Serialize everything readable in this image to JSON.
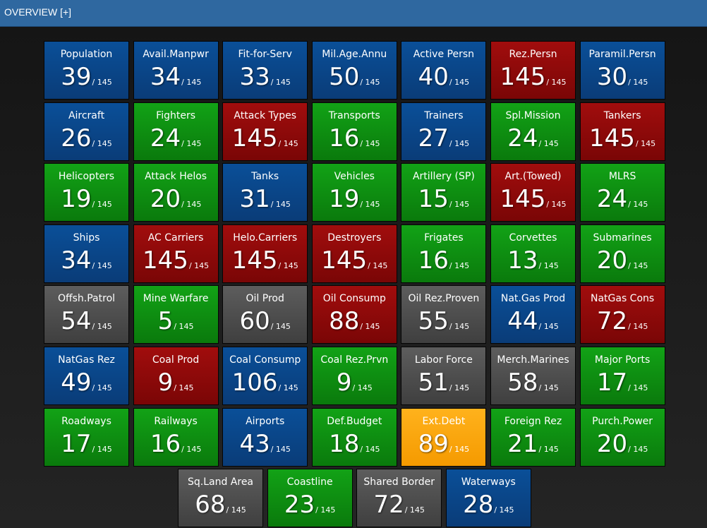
{
  "header": {
    "title": "OVERVIEW [+]"
  },
  "colors": {
    "blue": "#0a4f98",
    "green": "#12a216",
    "red": "#a10d0d",
    "gray": "#5d5d5d",
    "orange": "#ffb21c",
    "header": "#2f68a0"
  },
  "tiles": [
    {
      "label": "Population",
      "rank": "39",
      "total": "/ 145",
      "color": "blue"
    },
    {
      "label": "Avail.Manpwr",
      "rank": "34",
      "total": "/ 145",
      "color": "blue"
    },
    {
      "label": "Fit-for-Serv",
      "rank": "33",
      "total": "/ 145",
      "color": "blue"
    },
    {
      "label": "Mil.Age.Annu",
      "rank": "50",
      "total": "/ 145",
      "color": "blue"
    },
    {
      "label": "Active Persn",
      "rank": "40",
      "total": "/ 145",
      "color": "blue"
    },
    {
      "label": "Rez.Persn",
      "rank": "145",
      "total": "/ 145",
      "color": "red"
    },
    {
      "label": "Paramil.Persn",
      "rank": "30",
      "total": "/ 145",
      "color": "blue"
    },
    {
      "label": "Aircraft",
      "rank": "26",
      "total": "/ 145",
      "color": "blue"
    },
    {
      "label": "Fighters",
      "rank": "24",
      "total": "/ 145",
      "color": "green"
    },
    {
      "label": "Attack Types",
      "rank": "145",
      "total": "/ 145",
      "color": "red"
    },
    {
      "label": "Transports",
      "rank": "16",
      "total": "/ 145",
      "color": "green"
    },
    {
      "label": "Trainers",
      "rank": "27",
      "total": "/ 145",
      "color": "blue"
    },
    {
      "label": "Spl.Mission",
      "rank": "24",
      "total": "/ 145",
      "color": "green"
    },
    {
      "label": "Tankers",
      "rank": "145",
      "total": "/ 145",
      "color": "red"
    },
    {
      "label": "Helicopters",
      "rank": "19",
      "total": "/ 145",
      "color": "green"
    },
    {
      "label": "Attack Helos",
      "rank": "20",
      "total": "/ 145",
      "color": "green"
    },
    {
      "label": "Tanks",
      "rank": "31",
      "total": "/ 145",
      "color": "blue"
    },
    {
      "label": "Vehicles",
      "rank": "19",
      "total": "/ 145",
      "color": "green"
    },
    {
      "label": "Artillery (SP)",
      "rank": "15",
      "total": "/ 145",
      "color": "green"
    },
    {
      "label": "Art.(Towed)",
      "rank": "145",
      "total": "/ 145",
      "color": "red"
    },
    {
      "label": "MLRS",
      "rank": "24",
      "total": "/ 145",
      "color": "green"
    },
    {
      "label": "Ships",
      "rank": "34",
      "total": "/ 145",
      "color": "blue"
    },
    {
      "label": "AC Carriers",
      "rank": "145",
      "total": "/ 145",
      "color": "red"
    },
    {
      "label": "Helo.Carriers",
      "rank": "145",
      "total": "/ 145",
      "color": "red"
    },
    {
      "label": "Destroyers",
      "rank": "145",
      "total": "/ 145",
      "color": "red"
    },
    {
      "label": "Frigates",
      "rank": "16",
      "total": "/ 145",
      "color": "green"
    },
    {
      "label": "Corvettes",
      "rank": "13",
      "total": "/ 145",
      "color": "green"
    },
    {
      "label": "Submarines",
      "rank": "20",
      "total": "/ 145",
      "color": "green"
    },
    {
      "label": "Offsh.Patrol",
      "rank": "54",
      "total": "/ 145",
      "color": "gray"
    },
    {
      "label": "Mine Warfare",
      "rank": "5",
      "total": "/ 145",
      "color": "green"
    },
    {
      "label": "Oil Prod",
      "rank": "60",
      "total": "/ 145",
      "color": "gray"
    },
    {
      "label": "Oil Consump",
      "rank": "88",
      "total": "/ 145",
      "color": "red"
    },
    {
      "label": "Oil Rez.Proven",
      "rank": "55",
      "total": "/ 145",
      "color": "gray"
    },
    {
      "label": "Nat.Gas Prod",
      "rank": "44",
      "total": "/ 145",
      "color": "blue"
    },
    {
      "label": "NatGas Cons",
      "rank": "72",
      "total": "/ 145",
      "color": "red"
    },
    {
      "label": "NatGas Rez",
      "rank": "49",
      "total": "/ 145",
      "color": "blue"
    },
    {
      "label": "Coal Prod",
      "rank": "9",
      "total": "/ 145",
      "color": "red"
    },
    {
      "label": "Coal Consump",
      "rank": "106",
      "total": "/ 145",
      "color": "blue"
    },
    {
      "label": "Coal Rez.Prvn",
      "rank": "9",
      "total": "/ 145",
      "color": "green"
    },
    {
      "label": "Labor Force",
      "rank": "51",
      "total": "/ 145",
      "color": "gray"
    },
    {
      "label": "Merch.Marines",
      "rank": "58",
      "total": "/ 145",
      "color": "gray"
    },
    {
      "label": "Major Ports",
      "rank": "17",
      "total": "/ 145",
      "color": "green"
    },
    {
      "label": "Roadways",
      "rank": "17",
      "total": "/ 145",
      "color": "green"
    },
    {
      "label": "Railways",
      "rank": "16",
      "total": "/ 145",
      "color": "green"
    },
    {
      "label": "Airports",
      "rank": "43",
      "total": "/ 145",
      "color": "blue"
    },
    {
      "label": "Def.Budget",
      "rank": "18",
      "total": "/ 145",
      "color": "green"
    },
    {
      "label": "Ext.Debt",
      "rank": "89",
      "total": "/ 145",
      "color": "orange"
    },
    {
      "label": "Foreign Rez",
      "rank": "21",
      "total": "/ 145",
      "color": "green"
    },
    {
      "label": "Purch.Power",
      "rank": "20",
      "total": "/ 145",
      "color": "green"
    },
    {
      "label": "Sq.Land Area",
      "rank": "68",
      "total": "/ 145",
      "color": "gray"
    },
    {
      "label": "Coastline",
      "rank": "23",
      "total": "/ 145",
      "color": "green"
    },
    {
      "label": "Shared Border",
      "rank": "72",
      "total": "/ 145",
      "color": "gray"
    },
    {
      "label": "Waterways",
      "rank": "28",
      "total": "/ 145",
      "color": "blue"
    }
  ]
}
